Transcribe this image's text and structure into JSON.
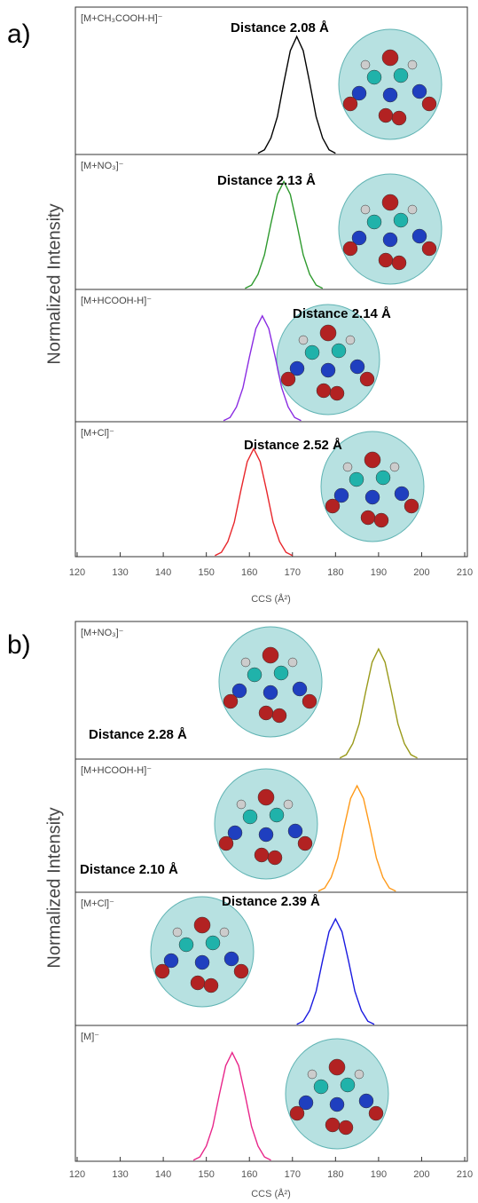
{
  "chart_data": [
    {
      "type": "line",
      "label": "a)",
      "ylabel": "Normalized Intensity",
      "xlabel": "CCS (Å²)",
      "xlim": [
        120,
        210
      ],
      "xticks": [
        120,
        130,
        140,
        150,
        160,
        170,
        180,
        190,
        200,
        210
      ],
      "ylim": [
        0,
        1.25
      ],
      "subplots": [
        {
          "name": "[M+CH₃COOH-H]⁻",
          "color": "#000000",
          "annotation": "Distance 2.08 Å",
          "x": [
            162,
            163.5,
            165,
            166.5,
            168,
            169.5,
            171,
            172.5,
            174,
            175.5,
            177,
            178.5,
            180
          ],
          "values": [
            0.01,
            0.04,
            0.14,
            0.32,
            0.61,
            0.88,
            1,
            0.88,
            0.61,
            0.32,
            0.14,
            0.04,
            0.01
          ]
        },
        {
          "name": "[M+NO₃]⁻",
          "color": "#2e9a2e",
          "annotation": "Distance 2.13 Å",
          "x": [
            159,
            160.5,
            162,
            163.5,
            165,
            166.5,
            168,
            169.5,
            171,
            172.5,
            174,
            175.5,
            177
          ],
          "values": [
            0.01,
            0.04,
            0.14,
            0.32,
            0.61,
            0.88,
            1,
            0.88,
            0.61,
            0.32,
            0.14,
            0.04,
            0.01
          ]
        },
        {
          "name": "[M+HCOOH-H]⁻",
          "color": "#8a2be2",
          "annotation": "Distance 2.14 Å",
          "x": [
            154,
            155.5,
            157,
            158.5,
            160,
            161.5,
            163,
            164.5,
            166,
            167.5,
            169,
            170.5,
            172
          ],
          "values": [
            0.01,
            0.04,
            0.14,
            0.32,
            0.61,
            0.88,
            1,
            0.88,
            0.61,
            0.32,
            0.14,
            0.04,
            0.01
          ]
        },
        {
          "name": "[M+Cl]⁻",
          "color": "#e8262b",
          "annotation": "Distance 2.52 Å",
          "x": [
            152,
            153.5,
            155,
            156.5,
            158,
            159.5,
            161,
            162.5,
            164,
            165.5,
            167,
            168.5,
            170
          ],
          "values": [
            0.01,
            0.04,
            0.14,
            0.32,
            0.61,
            0.88,
            1,
            0.88,
            0.61,
            0.32,
            0.14,
            0.04,
            0.01
          ]
        }
      ]
    },
    {
      "type": "line",
      "label": "b)",
      "ylabel": "Normalized Intensity",
      "xlabel": "CCS (Å²)",
      "xlim": [
        120,
        210
      ],
      "xticks": [
        120,
        130,
        140,
        150,
        160,
        170,
        180,
        190,
        200,
        210
      ],
      "ylim": [
        0,
        1.25
      ],
      "subplots": [
        {
          "name": "[M+NO₃]⁻",
          "color": "#9a9a1a",
          "annotation": "Distance 2.28 Å",
          "x": [
            181,
            182.5,
            184,
            185.5,
            187,
            188.5,
            190,
            191.5,
            193,
            194.5,
            196,
            197.5,
            199
          ],
          "values": [
            0.01,
            0.04,
            0.14,
            0.32,
            0.61,
            0.88,
            1,
            0.88,
            0.61,
            0.32,
            0.14,
            0.04,
            0.01
          ]
        },
        {
          "name": "[M+HCOOH-H]⁻",
          "color": "#ff9a1a",
          "annotation": "Distance 2.10 Å",
          "x": [
            176,
            177.5,
            179,
            180.5,
            182,
            183.5,
            185,
            186.5,
            188,
            189.5,
            191,
            192.5,
            194
          ],
          "values": [
            0.01,
            0.04,
            0.14,
            0.32,
            0.61,
            0.88,
            1,
            0.88,
            0.61,
            0.32,
            0.14,
            0.04,
            0.01
          ]
        },
        {
          "name": "[M+Cl]⁻",
          "color": "#1a1ae0",
          "annotation": "Distance 2.39 Å",
          "x": [
            171,
            172.5,
            174,
            175.5,
            177,
            178.5,
            180,
            181.5,
            183,
            184.5,
            186,
            187.5,
            189
          ],
          "values": [
            0.01,
            0.04,
            0.14,
            0.32,
            0.61,
            0.88,
            1,
            0.88,
            0.61,
            0.32,
            0.14,
            0.04,
            0.01
          ]
        },
        {
          "name": "[M]⁻",
          "color": "#e8268a",
          "x": [
            147,
            148.5,
            150,
            151.5,
            153,
            154.5,
            156,
            157.5,
            159,
            160.5,
            162,
            163.5,
            165
          ],
          "values": [
            0.01,
            0.04,
            0.14,
            0.32,
            0.61,
            0.88,
            1,
            0.88,
            0.61,
            0.32,
            0.14,
            0.04,
            0.01
          ]
        }
      ]
    }
  ]
}
